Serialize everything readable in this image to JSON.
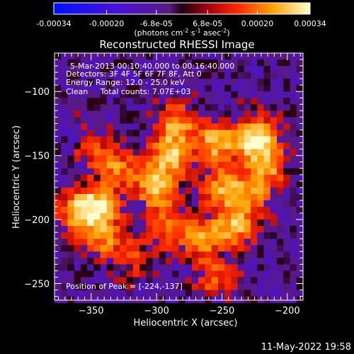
{
  "chart_data": {
    "type": "heatmap",
    "title": "Reconstructed RHESSI Image",
    "xlabel": "Heliocentric X (arcsec)",
    "ylabel": "Heliocentric Y (arcsec)",
    "xlim": [
      -378,
      -188
    ],
    "ylim": [
      -263,
      -70
    ],
    "x_ticks": [
      -350,
      -300,
      -250,
      -200
    ],
    "y_ticks": [
      -250,
      -200,
      -150,
      -100
    ],
    "colorbar": {
      "ticks": [
        -0.00034,
        -0.0002,
        -6.8e-05,
        6.8e-05,
        0.0002,
        0.00034
      ],
      "tick_labels": [
        "-0.00034",
        "-0.00020",
        "-6.8e-05",
        "6.8e-05",
        "0.00020",
        "0.00034"
      ],
      "range": [
        -0.00034,
        0.00034
      ],
      "unit_prefix": "(photons cm",
      "unit_sup1": "-2",
      "unit_mid": " s",
      "unit_sup2": "-1",
      "unit_mid2": " asec",
      "unit_sup3": "-2",
      "unit_suffix": ")"
    },
    "annotations": [
      "5-Mar-2013 00:10:40.000 to 00:16:40.000",
      "Detectors: 3F 4F 5F 6F 7F 8F, Att 0",
      "Energy Range: 12.0 - 25.0 keV",
      "Clean     Total counts: 7.07E+03"
    ],
    "peak_label": "Position of Peak = [-224,-137]",
    "peak": [
      -224,
      -137
    ],
    "hot_regions": [
      {
        "x": -224,
        "y": -137,
        "amp": 1.0
      },
      {
        "x": -290,
        "y": -150,
        "amp": 0.75
      },
      {
        "x": -300,
        "y": -175,
        "amp": 0.85
      },
      {
        "x": -285,
        "y": -125,
        "amp": 0.65
      },
      {
        "x": -330,
        "y": -160,
        "amp": 0.55
      },
      {
        "x": -345,
        "y": -190,
        "amp": 0.8
      },
      {
        "x": -360,
        "y": -195,
        "amp": 0.7
      },
      {
        "x": -340,
        "y": -215,
        "amp": 0.55
      },
      {
        "x": -255,
        "y": -140,
        "amp": 0.75
      },
      {
        "x": -250,
        "y": -175,
        "amp": 0.6
      },
      {
        "x": -240,
        "y": -205,
        "amp": 0.7
      },
      {
        "x": -265,
        "y": -215,
        "amp": 0.6
      },
      {
        "x": -290,
        "y": -205,
        "amp": 0.5
      },
      {
        "x": -215,
        "y": -160,
        "amp": 0.6
      },
      {
        "x": -230,
        "y": -180,
        "amp": 0.55
      },
      {
        "x": -350,
        "y": -145,
        "amp": 0.35
      },
      {
        "x": -255,
        "y": -245,
        "amp": 0.45
      },
      {
        "x": -315,
        "y": -230,
        "amp": 0.35
      }
    ]
  },
  "timestamp": "11-May-2022 19:58"
}
